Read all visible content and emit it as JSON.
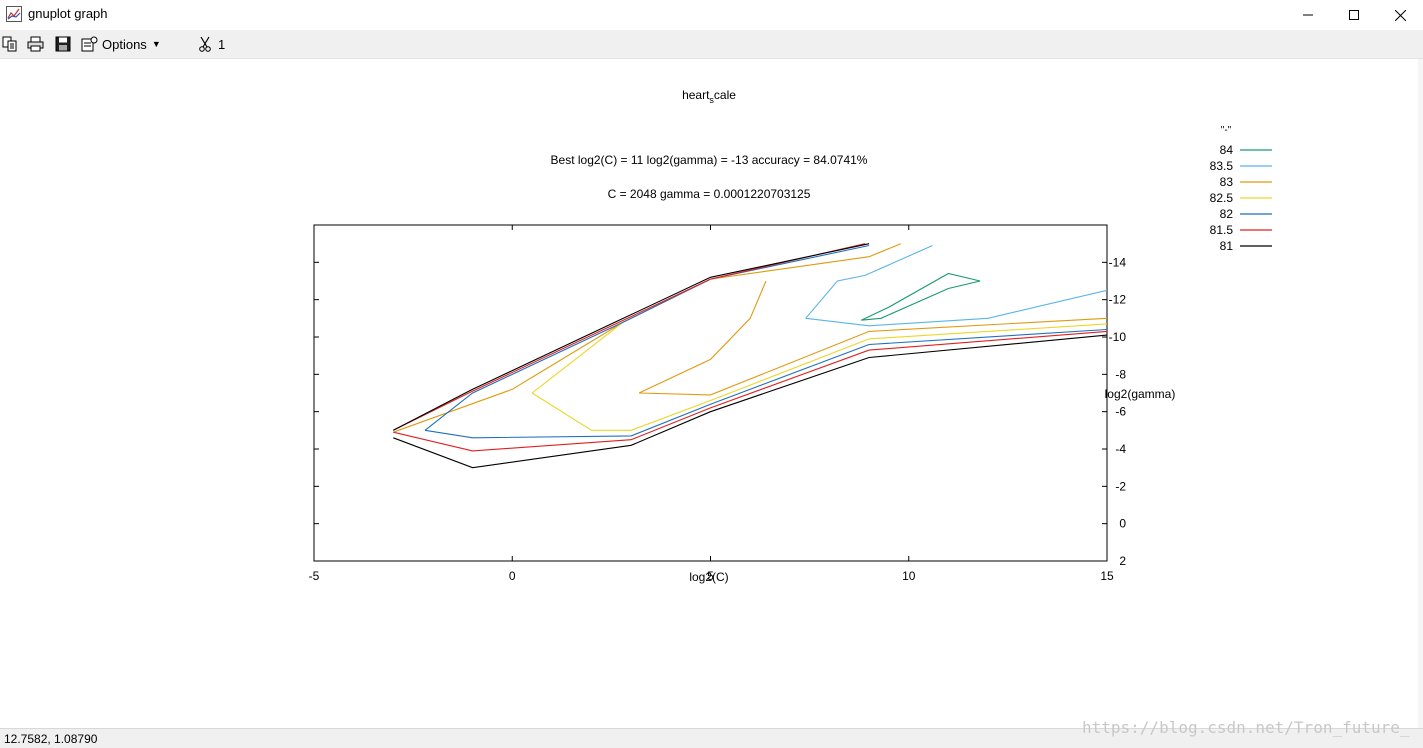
{
  "window": {
    "title": "gnuplot graph",
    "minimize_label": "—",
    "maximize_label": "☐",
    "close_label": "✕"
  },
  "toolbar": {
    "options_label": "Options",
    "options_arrow": "▼",
    "count_label": "1",
    "icons": [
      "copy-icon",
      "print-icon",
      "save-icon",
      "options-icon",
      "scissors-icon"
    ]
  },
  "status": {
    "coordinates": "12.7582,  1.08790"
  },
  "watermark": "https://blog.csdn.net/Tron_future_",
  "chart_data": {
    "type": "line",
    "title": "heart_scale",
    "title_main": "heart",
    "title_sub": "s",
    "title_rest": "cale",
    "subtitle_1": "Best log2(C) = 11  log2(gamma) = -13  accuracy = 84.0741%",
    "subtitle_2": "C = 2048  gamma = 0.0001220703125",
    "xlabel": "log2(C)",
    "ylabel": "log2(gamma)",
    "xlim": [
      -5,
      15
    ],
    "ylim": [
      -16,
      2
    ],
    "x_ticks": [
      -5,
      0,
      5,
      10,
      15
    ],
    "y_ticks": [
      2,
      0,
      -2,
      -4,
      -6,
      -8,
      -10,
      -12,
      -14
    ],
    "legend_title": "\"-\"",
    "legend_position": "top-right",
    "grid": false,
    "series": [
      {
        "name": "84",
        "color": "#1a9a6e",
        "points": [
          [
            8.8,
            -10.9
          ],
          [
            9.3,
            -11.0
          ],
          [
            11.0,
            -12.6
          ],
          [
            11.8,
            -13.0
          ],
          [
            11.0,
            -13.4
          ],
          [
            9.5,
            -11.6
          ],
          [
            8.8,
            -10.9
          ]
        ]
      },
      {
        "name": "83.5",
        "color": "#5ab4e8",
        "points": [
          [
            7.4,
            -11.0
          ],
          [
            8.2,
            -13.0
          ],
          [
            8.9,
            -13.3
          ],
          [
            10.6,
            -14.9
          ]
        ]
      },
      {
        "name": "83.5",
        "color": "#5ab4e8",
        "points": [
          [
            7.4,
            -11.0
          ],
          [
            9.0,
            -10.6
          ],
          [
            12.0,
            -11.0
          ],
          [
            15,
            -12.5
          ]
        ]
      },
      {
        "name": "83",
        "color": "#e09a10",
        "points": [
          [
            -3.0,
            -4.9
          ],
          [
            0,
            -7.2
          ],
          [
            2.8,
            -10.8
          ],
          [
            5.0,
            -13.1
          ],
          [
            9.0,
            -14.3
          ],
          [
            9.8,
            -15.0
          ]
        ]
      },
      {
        "name": "83",
        "color": "#e09a10",
        "points": [
          [
            3.2,
            -7.0
          ],
          [
            5.0,
            -8.8
          ],
          [
            6.0,
            -11.0
          ],
          [
            6.4,
            -13.0
          ]
        ]
      },
      {
        "name": "83",
        "color": "#e09a10",
        "points": [
          [
            3.2,
            -7.0
          ],
          [
            5.0,
            -6.9
          ],
          [
            9.0,
            -10.3
          ],
          [
            15,
            -11.0
          ]
        ]
      },
      {
        "name": "82.5",
        "color": "#ecd62a",
        "points": [
          [
            0.5,
            -7.0
          ],
          [
            2.8,
            -10.8
          ]
        ]
      },
      {
        "name": "82.5",
        "color": "#ecd62a",
        "points": [
          [
            0.5,
            -7.0
          ],
          [
            2.0,
            -5.0
          ],
          [
            3.0,
            -5.0
          ],
          [
            5.0,
            -6.6
          ],
          [
            9.0,
            -9.9
          ],
          [
            15,
            -10.7
          ]
        ]
      },
      {
        "name": "82",
        "color": "#1f6fbf",
        "points": [
          [
            -2.2,
            -5.0
          ],
          [
            -1.0,
            -7.0
          ],
          [
            2.8,
            -10.8
          ],
          [
            5.0,
            -13.1
          ],
          [
            9.0,
            -14.9
          ]
        ]
      },
      {
        "name": "82",
        "color": "#1f6fbf",
        "points": [
          [
            -2.2,
            -5.0
          ],
          [
            -1.0,
            -4.6
          ],
          [
            3.0,
            -4.7
          ],
          [
            5.0,
            -6.4
          ],
          [
            9.0,
            -9.6
          ],
          [
            15,
            -10.4
          ]
        ]
      },
      {
        "name": "81.5",
        "color": "#e02020",
        "points": [
          [
            -3.0,
            -5.0
          ],
          [
            -1.0,
            -7.1
          ],
          [
            2.8,
            -10.9
          ],
          [
            5.0,
            -13.1
          ],
          [
            8.9,
            -15.0
          ]
        ]
      },
      {
        "name": "81.5",
        "color": "#e02020",
        "points": [
          [
            -3.0,
            -4.9
          ],
          [
            -1.0,
            -3.9
          ],
          [
            3.0,
            -4.5
          ],
          [
            5.0,
            -6.2
          ],
          [
            9.0,
            -9.3
          ],
          [
            15,
            -10.3
          ]
        ]
      },
      {
        "name": "81",
        "color": "#000000",
        "points": [
          [
            -3.0,
            -5.0
          ],
          [
            -1.0,
            -7.2
          ],
          [
            2.8,
            -11.0
          ],
          [
            5.0,
            -13.2
          ],
          [
            9.0,
            -15.0
          ]
        ]
      },
      {
        "name": "81",
        "color": "#000000",
        "points": [
          [
            -3.0,
            -4.6
          ],
          [
            -1.0,
            -3.0
          ],
          [
            3.0,
            -4.2
          ],
          [
            5.0,
            -6.0
          ],
          [
            9.0,
            -8.9
          ],
          [
            15,
            -10.1
          ]
        ]
      }
    ],
    "legend": [
      {
        "name": "84",
        "color": "#1a9a6e"
      },
      {
        "name": "83.5",
        "color": "#5ab4e8"
      },
      {
        "name": "83",
        "color": "#e09a10"
      },
      {
        "name": "82.5",
        "color": "#ecd62a"
      },
      {
        "name": "82",
        "color": "#1f6fbf"
      },
      {
        "name": "81.5",
        "color": "#e02020"
      },
      {
        "name": "81",
        "color": "#000000"
      }
    ]
  }
}
